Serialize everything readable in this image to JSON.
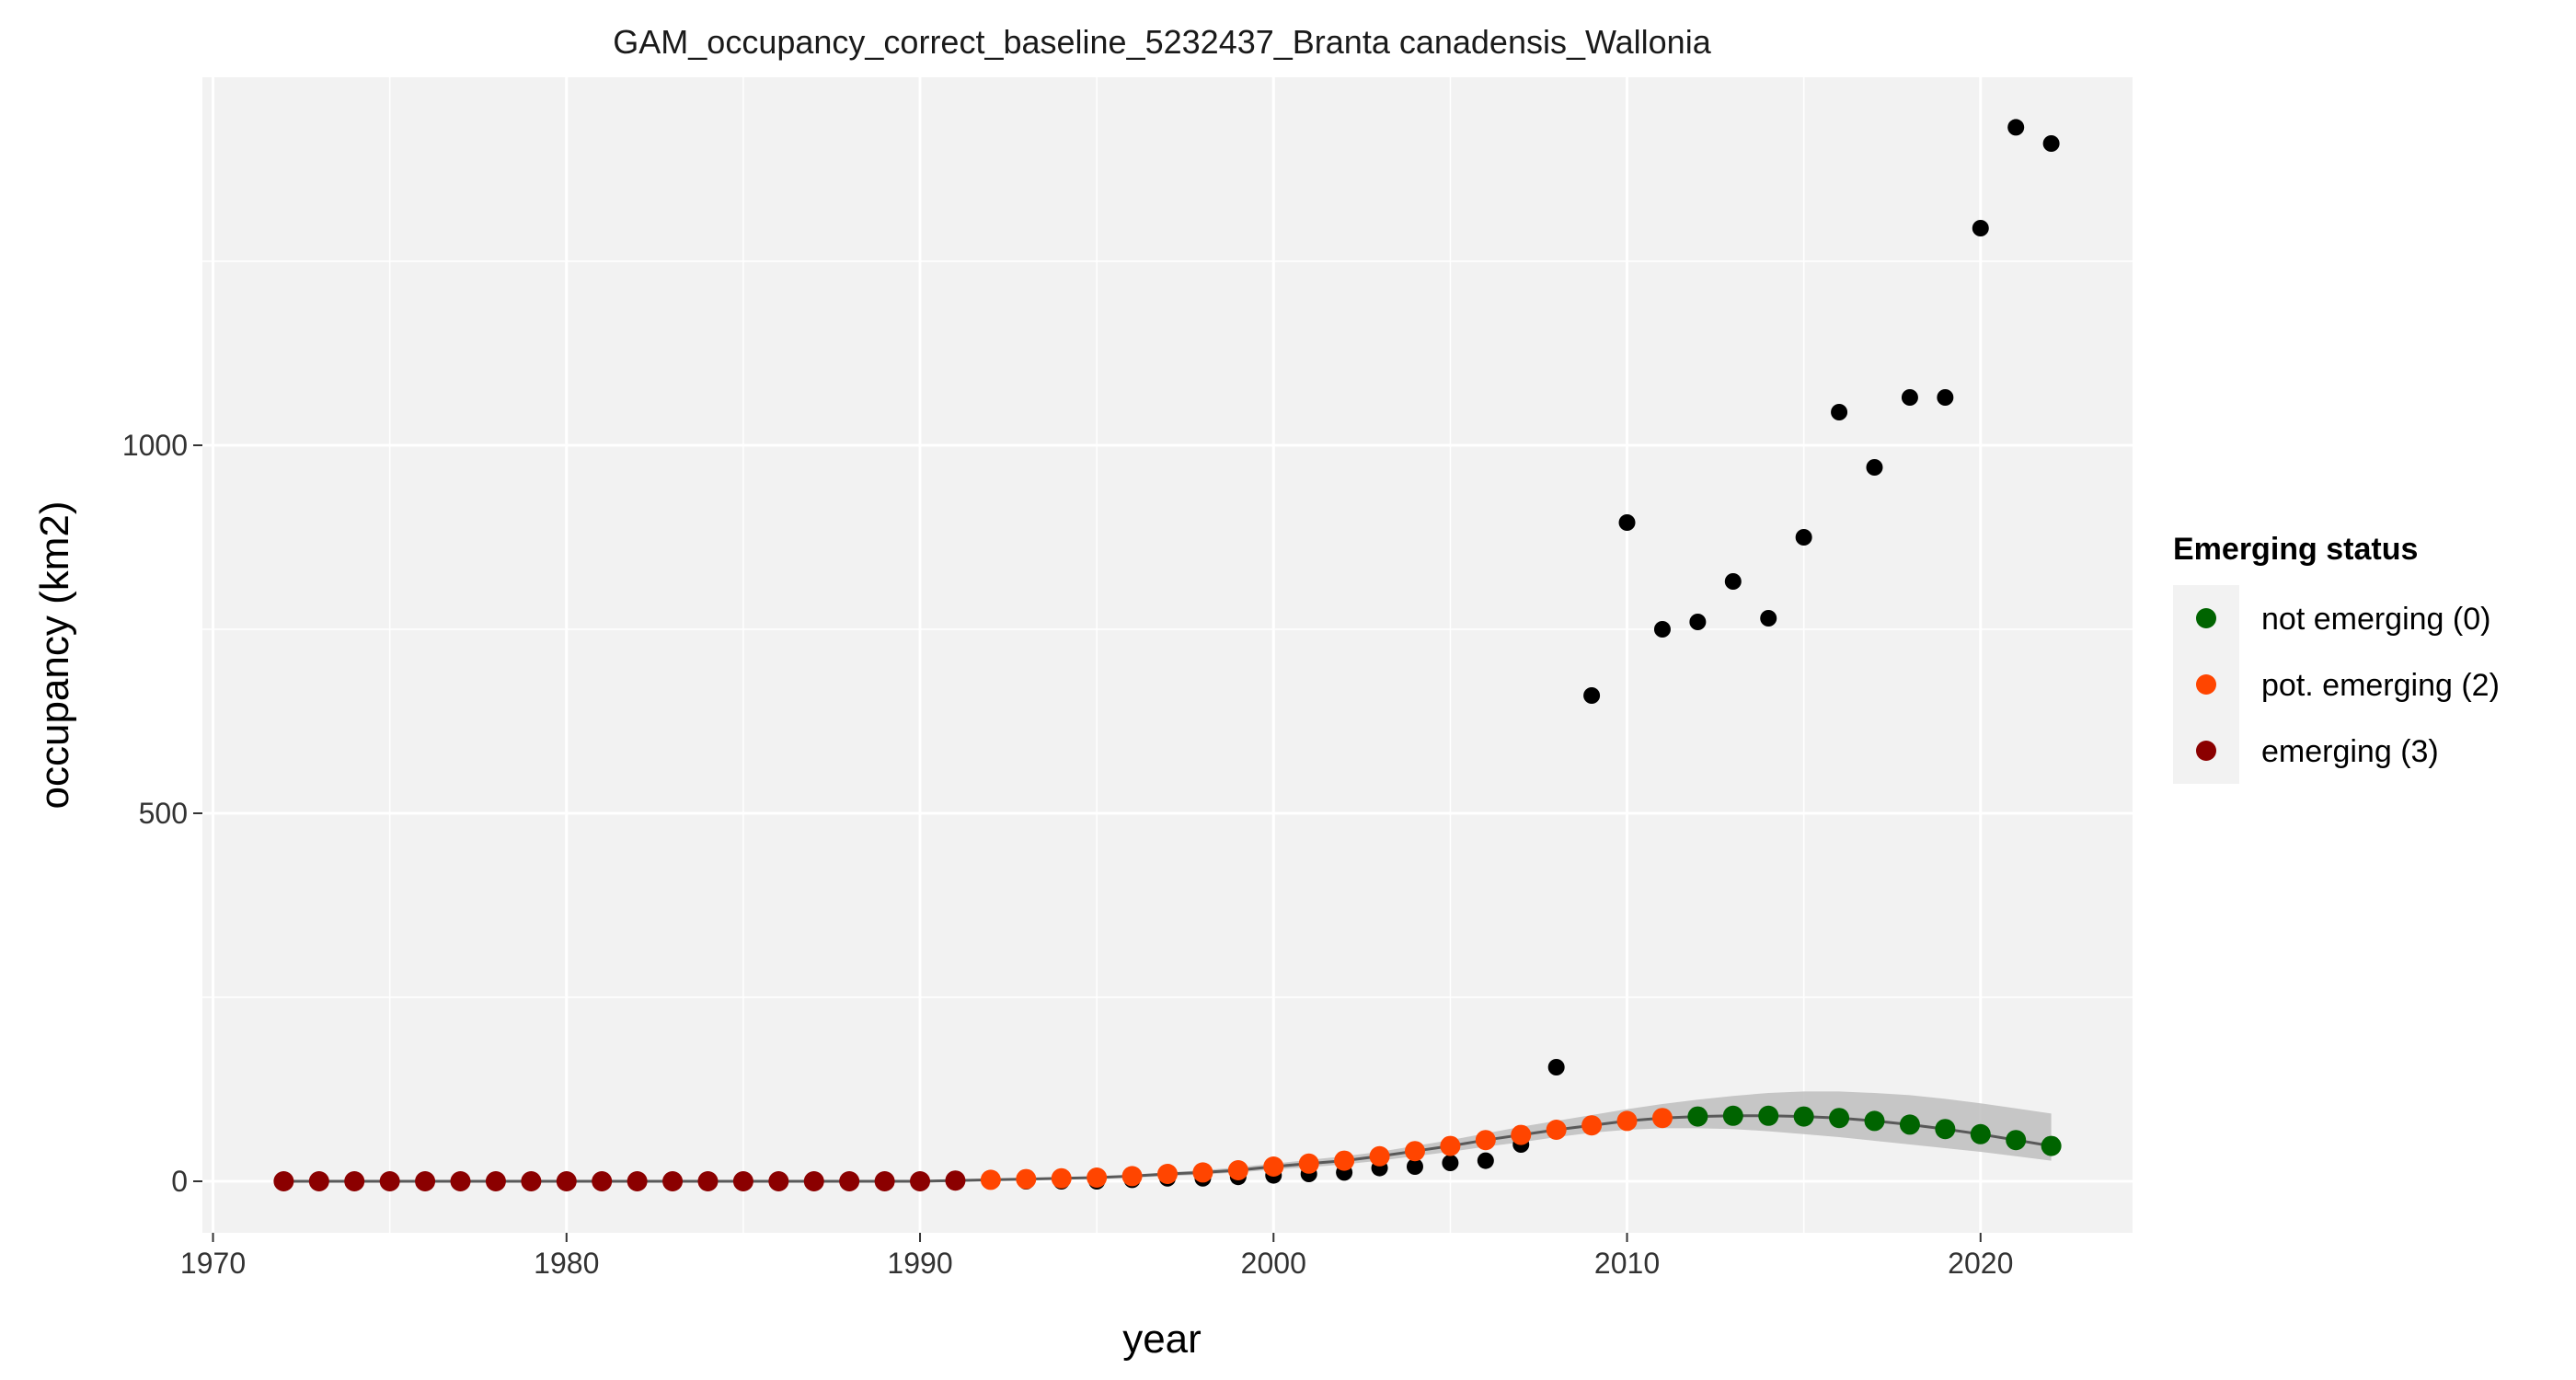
{
  "chart_data": {
    "type": "scatter",
    "title": "GAM_occupancy_correct_baseline_5232437_Branta canadensis_Wallonia",
    "xlabel": "year",
    "ylabel": "occupancy (km2)",
    "xlim": [
      1969.7,
      2024.3
    ],
    "ylim": [
      -70,
      1500
    ],
    "x_ticks": [
      1970,
      1980,
      1990,
      2000,
      2010,
      2020
    ],
    "y_ticks": [
      0,
      500,
      1000
    ],
    "grid": true,
    "legend": {
      "title": "Emerging status",
      "position": "right",
      "entries": [
        {
          "label": "not emerging (0)",
          "color": "#006400"
        },
        {
          "label": "pot. emerging (2)",
          "color": "#FF4500"
        },
        {
          "label": "emerging (3)",
          "color": "#8B0000"
        }
      ]
    },
    "colors": {
      "panel_bg": "#F2F2F2",
      "grid": "#FFFFFF",
      "ribbon": "#BEBEBE",
      "fit_line": "#595959",
      "observed": "#000000"
    },
    "observed": {
      "x": [
        1972,
        1973,
        1974,
        1975,
        1976,
        1977,
        1978,
        1979,
        1980,
        1981,
        1982,
        1983,
        1984,
        1985,
        1986,
        1987,
        1988,
        1989,
        1990,
        1991,
        1992,
        1993,
        1994,
        1995,
        1996,
        1997,
        1998,
        1999,
        2000,
        2001,
        2002,
        2003,
        2004,
        2005,
        2006,
        2007,
        2008,
        2009,
        2010,
        2011,
        2012,
        2013,
        2014,
        2015,
        2016,
        2017,
        2018,
        2019,
        2020,
        2021,
        2022
      ],
      "y": [
        0,
        0,
        0,
        0,
        0,
        0,
        0,
        0,
        0,
        0,
        0,
        0,
        0,
        0,
        0,
        0,
        0,
        0,
        0,
        0,
        0,
        0,
        0,
        0,
        2,
        4,
        4,
        6,
        8,
        10,
        12,
        18,
        20,
        25,
        28,
        50,
        155,
        660,
        895,
        750,
        760,
        815,
        765,
        875,
        1045,
        970,
        1065,
        1065,
        1295,
        1432,
        1410
      ]
    },
    "fitted": {
      "x": [
        1972,
        1973,
        1974,
        1975,
        1976,
        1977,
        1978,
        1979,
        1980,
        1981,
        1982,
        1983,
        1984,
        1985,
        1986,
        1987,
        1988,
        1989,
        1990,
        1991,
        1992,
        1993,
        1994,
        1995,
        1996,
        1997,
        1998,
        1999,
        2000,
        2001,
        2002,
        2003,
        2004,
        2005,
        2006,
        2007,
        2008,
        2009,
        2010,
        2011,
        2012,
        2013,
        2014,
        2015,
        2016,
        2017,
        2018,
        2019,
        2020,
        2021,
        2022
      ],
      "y": [
        0,
        0,
        0,
        0,
        0,
        0,
        0,
        0,
        0,
        0,
        0,
        0,
        0,
        0,
        0,
        0,
        0,
        0,
        0,
        1,
        2,
        3,
        4,
        5,
        7,
        10,
        12,
        15,
        20,
        24,
        28,
        34,
        41,
        48,
        56,
        63,
        70,
        76,
        82,
        86,
        88,
        89,
        89,
        88,
        86,
        82,
        77,
        71,
        64,
        56,
        48
      ],
      "lower": [
        0,
        0,
        0,
        0,
        0,
        0,
        0,
        0,
        0,
        0,
        0,
        0,
        0,
        0,
        0,
        0,
        0,
        0,
        0,
        0,
        1,
        2,
        3,
        4,
        5,
        7,
        9,
        12,
        16,
        19,
        23,
        28,
        34,
        40,
        47,
        53,
        60,
        66,
        70,
        72,
        72,
        71,
        68,
        64,
        60,
        55,
        50,
        45,
        40,
        34,
        28
      ],
      "upper": [
        1,
        1,
        1,
        1,
        1,
        1,
        1,
        1,
        1,
        1,
        1,
        1,
        1,
        1,
        1,
        1,
        1,
        1,
        1,
        2,
        3,
        4,
        5,
        7,
        9,
        12,
        15,
        19,
        24,
        29,
        34,
        40,
        48,
        56,
        65,
        74,
        82,
        90,
        98,
        105,
        111,
        116,
        120,
        122,
        122,
        120,
        117,
        112,
        106,
        99,
        92
      ],
      "status": [
        "3",
        "3",
        "3",
        "3",
        "3",
        "3",
        "3",
        "3",
        "3",
        "3",
        "3",
        "3",
        "3",
        "3",
        "3",
        "3",
        "3",
        "3",
        "3",
        "3",
        "2",
        "2",
        "2",
        "2",
        "2",
        "2",
        "2",
        "2",
        "2",
        "2",
        "2",
        "2",
        "2",
        "2",
        "2",
        "2",
        "2",
        "2",
        "2",
        "2",
        "0",
        "0",
        "0",
        "0",
        "0",
        "0",
        "0",
        "0",
        "0",
        "0",
        "0"
      ]
    }
  }
}
